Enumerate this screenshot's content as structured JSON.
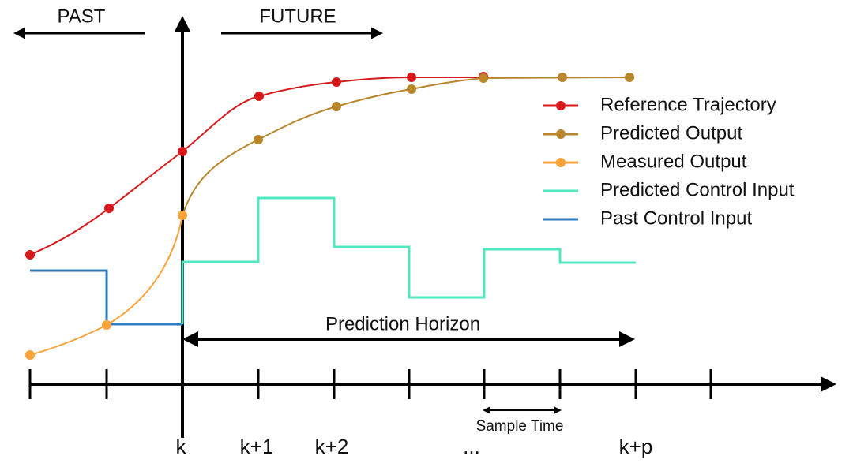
{
  "header": {
    "past": "PAST",
    "future": "FUTURE"
  },
  "legend": [
    {
      "name": "Reference Trajectory",
      "color": "#d7191c",
      "marker": true
    },
    {
      "name": "Predicted Output",
      "color": "#b8862b",
      "marker": true
    },
    {
      "name": "Measured Output",
      "color": "#f9a33a",
      "marker": true
    },
    {
      "name": "Predicted Control Input",
      "color": "#4fe8c0",
      "marker": false
    },
    {
      "name": "Past Control Input",
      "color": "#2f7ec1",
      "marker": false
    }
  ],
  "annotations": {
    "prediction_horizon": "Prediction Horizon",
    "sample_time": "Sample Time"
  },
  "axis_labels": [
    "k",
    "k+1",
    "k+2",
    "...",
    "k+p"
  ]
}
